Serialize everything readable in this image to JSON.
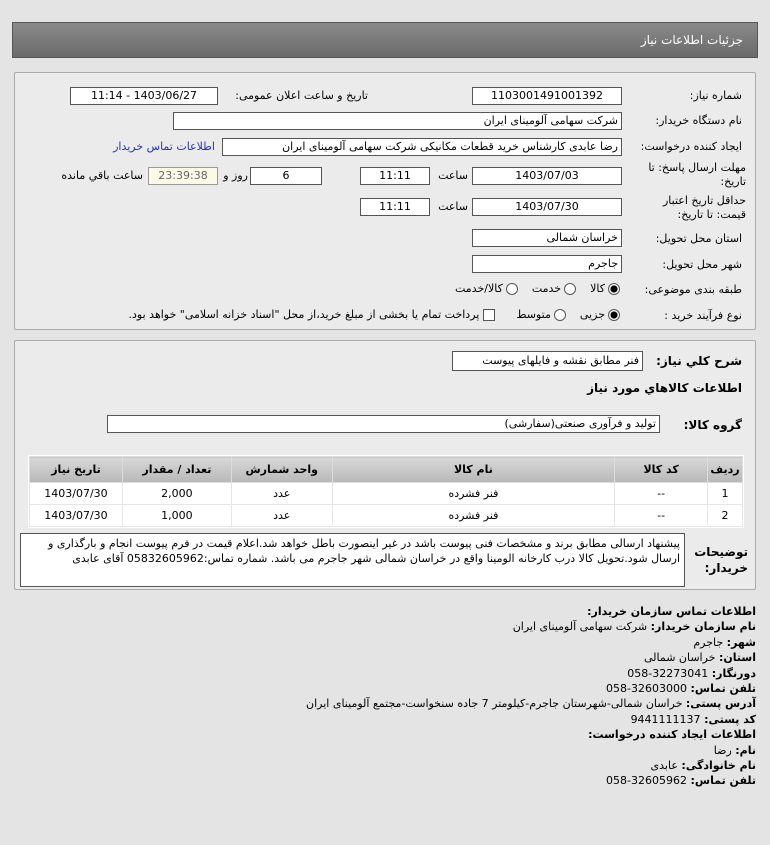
{
  "header": {
    "title": "جزئیات اطلاعات نیاز"
  },
  "form": {
    "need_number_label": "شماره نیاز:",
    "need_number": "1103001491001392",
    "announce_label": "تاریخ و ساعت اعلان عمومی:",
    "announce_value": "1403/06/27 - 11:14",
    "buyer_label": "نام دستگاه خریدار:",
    "buyer": "شرکت سهامی آلومینای ایران",
    "creator_label": "ایجاد کننده درخواست:",
    "creator": "رضا عابدی کارشناس خرید قطعات مکانیکی شرکت سهامی آلومینای ایران",
    "contact_link": "اطلاعات تماس خریدار",
    "deadline_label": "مهلت ارسال پاسخ: تا تاریخ:",
    "deadline_date": "1403/07/03",
    "time_label": "ساعت",
    "deadline_time": "11:11",
    "days": "6",
    "days_label": "روز و",
    "remaining": "23:39:38",
    "remaining_label": "ساعت باقي مانده",
    "validity_label": "حداقل تاریخ اعتبار قیمت: تا تاریخ:",
    "validity_date": "1403/07/30",
    "validity_time": "11:11",
    "province_label": "استان محل تحویل:",
    "province": "خراسان شمالی",
    "city_label": "شهر محل تحویل:",
    "city": "جاجرم",
    "category_label": "طبقه بندی موضوعی:",
    "category_options": [
      "کالا",
      "خدمت",
      "کالا/خدمت"
    ],
    "category_selected": "کالا",
    "process_label": "نوع فرآیند خرید :",
    "process_options": [
      "جزیی",
      "متوسط"
    ],
    "process_selected": "جزیی",
    "payment_note": "پرداخت تمام یا بخشی از مبلغ خرید،از محل \"اسناد خزانه اسلامی\" خواهد بود."
  },
  "details": {
    "summary_label": "شرح كلي نياز:",
    "summary": "فنر مطابق نقشه و فایلهای پیوست",
    "goods_heading": "اطلاعات کالاهاي مورد نياز",
    "group_label": "گروه کالا:",
    "group": "تولید و فرآوری صنعتی(سفارشی)",
    "columns": [
      "ردیف",
      "کد کالا",
      "نام کالا",
      "واحد شمارش",
      "تعداد / مقدار",
      "تاریخ نیاز"
    ],
    "rows": [
      [
        "1",
        "--",
        "فنر فشرده",
        "عدد",
        "2,000",
        "1403/07/30"
      ],
      [
        "2",
        "--",
        "فنر فشرده",
        "عدد",
        "1,000",
        "1403/07/30"
      ]
    ],
    "notes_label": "توضیحات خریدار:",
    "notes": "پیشنهاد ارسالی مطابق برند و مشخصات فنی پیوست باشد در غیر اینصورت باطل خواهد شد.اعلام قیمت در فرم پیوست انجام و بارگذاری و ارسال شود.تحویل کالا درب کارخانه الومینا واقع در خراسان شمالی شهر جاجرم می باشد. شماره تماس:05832605962 آقای عابدی"
  },
  "contact": {
    "heading": "اطلاعات تماس سازمان خریدار:",
    "org_label": "نام سازمان خریدار:",
    "org": "شرکت سهامی آلومینای ایران",
    "city_label": "شهر:",
    "city": "جاجرم",
    "province_label": "استان:",
    "province": "خراسان شمالی",
    "fax_label": "دورنگار:",
    "fax": "32273041-058",
    "phone_label": "تلفن تماس:",
    "phone": "32603000-058",
    "address_label": "آدرس پستی:",
    "address": "خراسان شمالی-شهرستان جاجرم-کیلومتر 7 جاده سنخواست-مجتمع آلومینای ایران",
    "postal_label": "کد پستی:",
    "postal": "9441111137",
    "creator_heading": "اطلاعات ایجاد کننده درخواست:",
    "name_label": "نام:",
    "name": "رضا",
    "family_label": "نام خانوادگی:",
    "family": "عابدی",
    "creator_phone_label": "تلفن تماس:",
    "creator_phone": "32605962-058"
  }
}
